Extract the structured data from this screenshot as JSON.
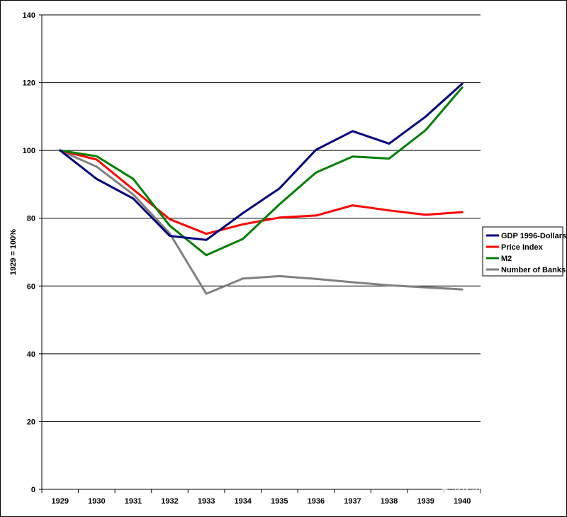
{
  "chart_data": {
    "type": "line",
    "title": "",
    "xlabel": "",
    "ylabel": "1929 = 100%",
    "categories": [
      "1929",
      "1930",
      "1931",
      "1932",
      "1933",
      "1934",
      "1935",
      "1936",
      "1937",
      "1938",
      "1939",
      "1940"
    ],
    "ylim": [
      0,
      140
    ],
    "yticks": [
      0,
      20,
      40,
      60,
      80,
      100,
      120,
      140
    ],
    "grid": true,
    "legend_position": "right",
    "series": [
      {
        "name": "GDP 1996-Dollars",
        "color": "#000080",
        "values": [
          100,
          91.6,
          85.8,
          74.8,
          73.6,
          81.5,
          88.8,
          100.2,
          105.7,
          102.0,
          110.0,
          119.7
        ]
      },
      {
        "name": "Price Index",
        "color": "#ff0000",
        "values": [
          100,
          97.3,
          88.5,
          79.7,
          75.4,
          78.2,
          80.2,
          80.8,
          83.8,
          82.3,
          81.0,
          81.8
        ]
      },
      {
        "name": "M2",
        "color": "#008000",
        "values": [
          100,
          98.3,
          91.6,
          77.8,
          69.1,
          73.9,
          84.1,
          93.5,
          98.2,
          97.6,
          106.0,
          118.6
        ]
      },
      {
        "name": "Number of Banks",
        "color": "#808080",
        "values": [
          100,
          95.2,
          87.0,
          75.5,
          57.7,
          62.2,
          62.9,
          62.1,
          61.1,
          60.2,
          59.6,
          59.0
        ]
      }
    ],
    "watermark": "BTC深入浅出"
  }
}
